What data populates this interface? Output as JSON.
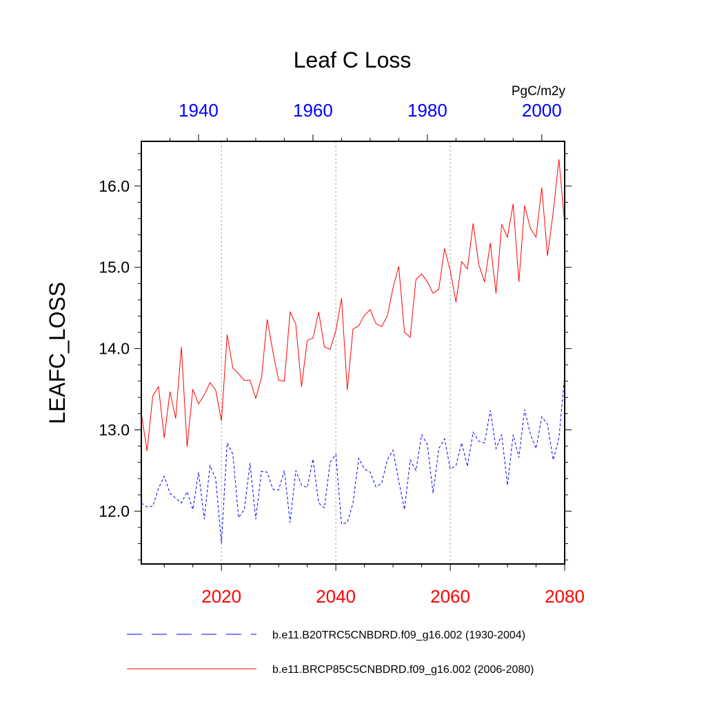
{
  "chart_data": {
    "type": "line",
    "title": "Leaf C Loss",
    "ylabel": "LEAFC_LOSS",
    "units": "PgC/m2y",
    "ylim": [
      11.35,
      16.55
    ],
    "yticks": [
      {
        "value": 12.0,
        "label": "12.0"
      },
      {
        "value": 13.0,
        "label": "13.0"
      },
      {
        "value": 14.0,
        "label": "14.0"
      },
      {
        "value": 15.0,
        "label": "15.0"
      },
      {
        "value": 16.0,
        "label": "16.0"
      }
    ],
    "bottom_axis": {
      "range": [
        2006,
        2080
      ],
      "ticks": [
        {
          "value": 2020,
          "label": "2020"
        },
        {
          "value": 2040,
          "label": "2040"
        },
        {
          "value": 2060,
          "label": "2060"
        },
        {
          "value": 2080,
          "label": "2080"
        }
      ],
      "color": "#ff0000"
    },
    "top_axis": {
      "range": [
        1930,
        2004
      ],
      "ticks": [
        {
          "value": 1940,
          "label": "1940"
        },
        {
          "value": 1960,
          "label": "1960"
        },
        {
          "value": 1980,
          "label": "1980"
        },
        {
          "value": 2000,
          "label": "2000"
        }
      ],
      "color": "#0000ff"
    },
    "grid_x": [
      2020,
      2040,
      2060
    ],
    "series": [
      {
        "name": "b.e11.B20TRC5CNBDRD.f09_g16.002 (1930-2004)",
        "color": "#0000ff",
        "dash": "dashed",
        "start": 1930,
        "values": [
          12.1,
          12.05,
          12.06,
          12.28,
          12.43,
          12.22,
          12.16,
          12.1,
          12.24,
          12.02,
          12.48,
          11.9,
          12.56,
          12.4,
          11.6,
          12.84,
          12.7,
          11.92,
          12.02,
          12.59,
          11.9,
          12.49,
          12.48,
          12.27,
          12.26,
          12.5,
          11.86,
          12.5,
          12.32,
          12.29,
          12.64,
          12.1,
          12.04,
          12.6,
          12.7,
          11.84,
          11.86,
          12.1,
          12.65,
          12.52,
          12.48,
          12.3,
          12.34,
          12.63,
          12.75,
          12.37,
          12.02,
          12.63,
          12.5,
          12.94,
          12.82,
          12.22,
          12.77,
          12.89,
          12.52,
          12.56,
          12.84,
          12.55,
          12.97,
          12.86,
          12.84,
          13.24,
          12.77,
          12.94,
          12.32,
          12.94,
          12.66,
          13.25,
          12.95,
          12.77,
          13.16,
          13.07,
          12.63,
          12.9,
          13.68
        ]
      },
      {
        "name": "b.e11.BRCP85C5CNBDRD.f09_g16.002 (2006-2080)",
        "color": "#ff0000",
        "dash": "solid",
        "start": 2006,
        "values": [
          13.2,
          12.74,
          13.42,
          13.53,
          12.9,
          13.47,
          13.14,
          14.02,
          12.79,
          13.5,
          13.32,
          13.43,
          13.58,
          13.49,
          13.11,
          14.17,
          13.76,
          13.69,
          13.61,
          13.61,
          13.39,
          13.64,
          14.36,
          13.96,
          13.61,
          13.6,
          14.45,
          14.3,
          13.53,
          14.1,
          14.13,
          14.45,
          14.02,
          13.99,
          14.22,
          14.62,
          13.49,
          14.24,
          14.28,
          14.41,
          14.48,
          14.31,
          14.27,
          14.4,
          14.75,
          15.01,
          14.2,
          14.14,
          14.85,
          14.92,
          14.82,
          14.68,
          14.73,
          15.23,
          14.96,
          14.57,
          15.07,
          14.98,
          15.54,
          15.03,
          14.82,
          15.3,
          14.68,
          15.53,
          15.37,
          15.78,
          14.82,
          15.76,
          15.48,
          15.37,
          15.98,
          15.14,
          15.68,
          16.33,
          15.53
        ]
      }
    ]
  }
}
